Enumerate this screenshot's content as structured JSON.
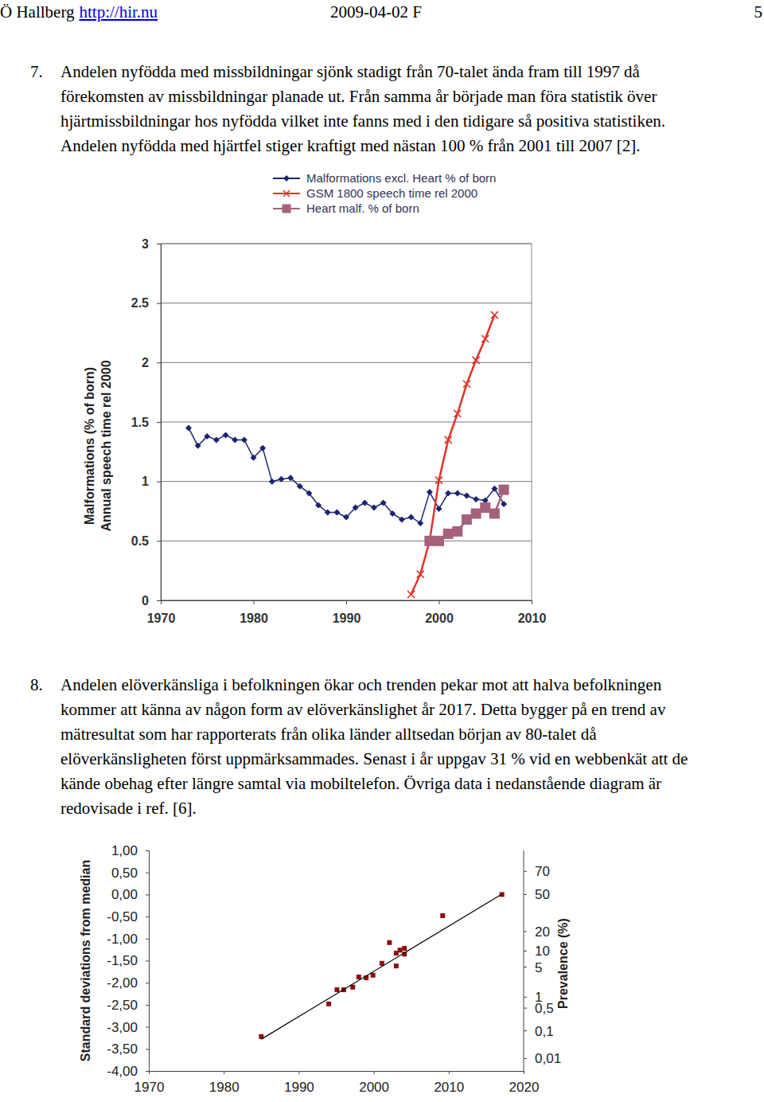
{
  "header": {
    "author": "Ö Hallberg",
    "link": "http://hir.nu",
    "date": "2009-04-02 F",
    "page": "5"
  },
  "paragraphs": [
    {
      "number": "7.",
      "lines": [
        "Andelen nyfödda med missbildningar sjönk stadigt från 70-talet ända fram till 1997 då",
        "förekomsten av missbildningar planade ut. Från samma år började man föra statistik över",
        "hjärtmissbildningar hos nyfödda vilket inte fanns med i den tidigare så positiva statistiken.",
        "Andelen nyfödda med hjärtfel stiger kraftigt med nästan 100 % från 2001 till 2007 [2]."
      ]
    },
    {
      "number": "8.",
      "lines": [
        "Andelen elöverkänsliga i befolkningen ökar och trenden pekar mot att halva befolkningen",
        "kommer att känna av någon form av elöverkänslighet år 2017. Detta bygger på en trend av",
        "mätresultat som har rapporterats från olika länder alltsedan början av 80-talet då",
        "elöverkänsligheten först uppmärksammades. Senast i år uppgav 31 % vid en webbenkät att de",
        "kände obehag efter längre samtal via mobiltelefon. Övriga data i nedanstående diagram är",
        "redovisade i ref. [6]."
      ]
    }
  ],
  "chart_data": [
    {
      "type": "line",
      "ylabel": [
        "Malformations (% of born)",
        "Annual speech time rel 2000"
      ],
      "xlim": [
        1970,
        2010
      ],
      "xticks": [
        1970,
        1980,
        1990,
        2000,
        2010
      ],
      "ylim": [
        0,
        3
      ],
      "yticks": [
        0,
        0.5,
        1,
        1.5,
        2,
        2.5,
        3
      ],
      "grid": true,
      "legend": "top",
      "series": [
        {
          "name": "Malformations excl. Heart % of born",
          "color": "#1c2470",
          "marker": "diamond",
          "x": [
            1973,
            1974,
            1975,
            1976,
            1977,
            1978,
            1979,
            1980,
            1981,
            1982,
            1983,
            1984,
            1985,
            1986,
            1987,
            1988,
            1989,
            1990,
            1991,
            1992,
            1993,
            1994,
            1995,
            1996,
            1997,
            1998,
            1999,
            2000,
            2001,
            2002,
            2003,
            2004,
            2005,
            2006,
            2007
          ],
          "values": [
            1.45,
            1.3,
            1.38,
            1.35,
            1.39,
            1.35,
            1.35,
            1.2,
            1.28,
            1.0,
            1.02,
            1.03,
            0.96,
            0.9,
            0.8,
            0.74,
            0.74,
            0.7,
            0.78,
            0.82,
            0.78,
            0.82,
            0.73,
            0.68,
            0.7,
            0.65,
            0.91,
            0.77,
            0.9,
            0.9,
            0.88,
            0.85,
            0.84,
            0.94,
            0.81
          ]
        },
        {
          "name": "GSM 1800 speech time rel 2000",
          "color": "#e0332b",
          "marker": "x",
          "x": [
            1997,
            1998,
            1999,
            2000,
            2001,
            2002,
            2003,
            2004,
            2005,
            2006
          ],
          "values": [
            0.05,
            0.22,
            0.5,
            1.01,
            1.35,
            1.57,
            1.82,
            2.02,
            2.2,
            2.4
          ]
        },
        {
          "name": "Heart malf. % of born",
          "color": "#a5607e",
          "marker": "square",
          "x": [
            1999,
            2000,
            2001,
            2002,
            2003,
            2004,
            2005,
            2006,
            2007
          ],
          "values": [
            0.5,
            0.5,
            0.56,
            0.58,
            0.68,
            0.73,
            0.78,
            0.73,
            0.93
          ]
        }
      ]
    },
    {
      "type": "scatter",
      "ylabel": "Standard deviations from median",
      "y2label": "Prevalence (%)",
      "xlim": [
        1970,
        2020
      ],
      "xticks": [
        1970,
        1980,
        1990,
        2000,
        2010,
        2020
      ],
      "ylim": [
        -4,
        1
      ],
      "yticks": [
        {
          "value": 1,
          "label": "1,00"
        },
        {
          "value": 0.5,
          "label": "0,50"
        },
        {
          "value": 0,
          "label": "0,00"
        },
        {
          "value": -0.5,
          "label": "-0,50"
        },
        {
          "value": -1,
          "label": "-1,00"
        },
        {
          "value": -1.5,
          "label": "-1,50"
        },
        {
          "value": -2,
          "label": "-2,00"
        },
        {
          "value": -2.5,
          "label": "-2,50"
        },
        {
          "value": -3,
          "label": "-3,00"
        },
        {
          "value": -3.5,
          "label": "-3,50"
        },
        {
          "value": -4,
          "label": "-4,00"
        }
      ],
      "y2lim": [
        0.0032,
        84.13
      ],
      "y2ticks": [
        70,
        50,
        20,
        10,
        5,
        1,
        {
          "value": 0.5,
          "label": "0,5"
        },
        {
          "value": 0.1,
          "label": "0,1"
        },
        {
          "value": 0.01,
          "label": "0,01"
        }
      ],
      "grid": false,
      "series": [
        {
          "type": "scatter",
          "color": "#8b1010",
          "marker": "square",
          "x": [
            1985,
            1994,
            1995.1,
            1996,
            1997.2,
            1998,
            1999,
            1999.9,
            2001.1,
            2002.1,
            2003,
            2003,
            2003.5,
            2004.1,
            2004.1,
            2009.2,
            2017.1
          ],
          "values": [
            -3.22,
            -2.48,
            -2.16,
            -2.16,
            -2.1,
            -1.87,
            -1.89,
            -1.83,
            -1.56,
            -1.09,
            -1.62,
            -1.33,
            -1.26,
            -1.35,
            -1.22,
            -0.48,
            0.0
          ]
        },
        {
          "type": "line",
          "color": "#000000",
          "line_style": "solid",
          "x": [
            1985,
            2017
          ],
          "values": [
            -3.28,
            0.0
          ]
        }
      ]
    }
  ]
}
